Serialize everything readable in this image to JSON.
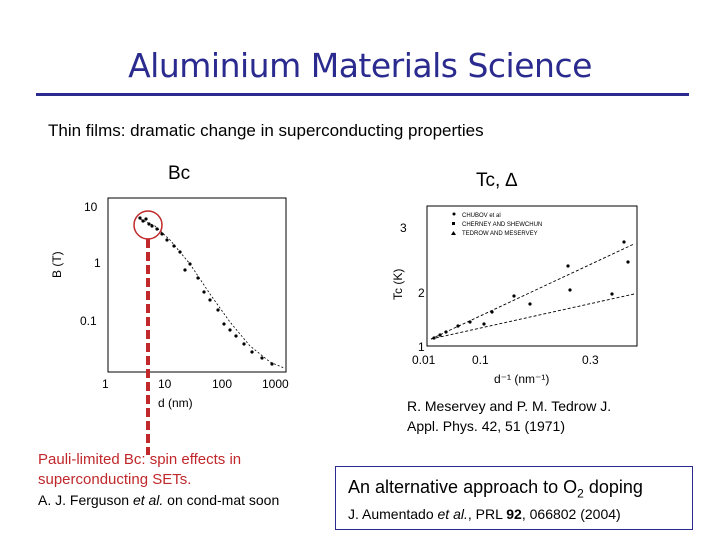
{
  "slide": {
    "title": "Aluminium Materials Science",
    "subtitle": "Thin films: dramatic change in superconducting properties"
  },
  "left_plot": {
    "header": "Bc",
    "y_axis_label": "B (T)",
    "x_axis_label": "d (nm)",
    "y_ticks": [
      "10",
      "1",
      "0.1"
    ],
    "x_ticks": [
      "1",
      "10",
      "100",
      "1000"
    ]
  },
  "right_plot": {
    "header": "Tc, ∆",
    "y_axis_label": "Tc (K)",
    "x_axis_label": "d⁻¹ (nm⁻¹)",
    "y_ticks": [
      "3",
      "2",
      "1"
    ],
    "x_ticks": [
      "0.01",
      "0.1",
      "0.3"
    ],
    "legend": [
      "CHUBOV et al",
      "CHERNEY AND SHEWCHUN",
      "TEDROW AND MESERVEY"
    ],
    "reference_line1": "R. Meservey and P. M. Tedrow J.",
    "reference_line2": "Appl. Phys. 42, 51 (1971)"
  },
  "pauli": {
    "title": "Pauli-limited Bc: spin effects in superconducting SETs.",
    "ref_authors": "A. J. Ferguson ",
    "ref_etal": "et al.",
    "ref_rest": " on cond-mat soon"
  },
  "alternative": {
    "title_pre": "An alternative approach to O",
    "title_sub": "2",
    "title_post": " doping",
    "ref_authors": "J. Aumentado ",
    "ref_etal": "et al.",
    "ref_journal": ", PRL ",
    "ref_volume": "92",
    "ref_rest": ", 066802 (2004)"
  },
  "colors": {
    "title": "#2b2b8f",
    "highlight": "#c0282c"
  }
}
